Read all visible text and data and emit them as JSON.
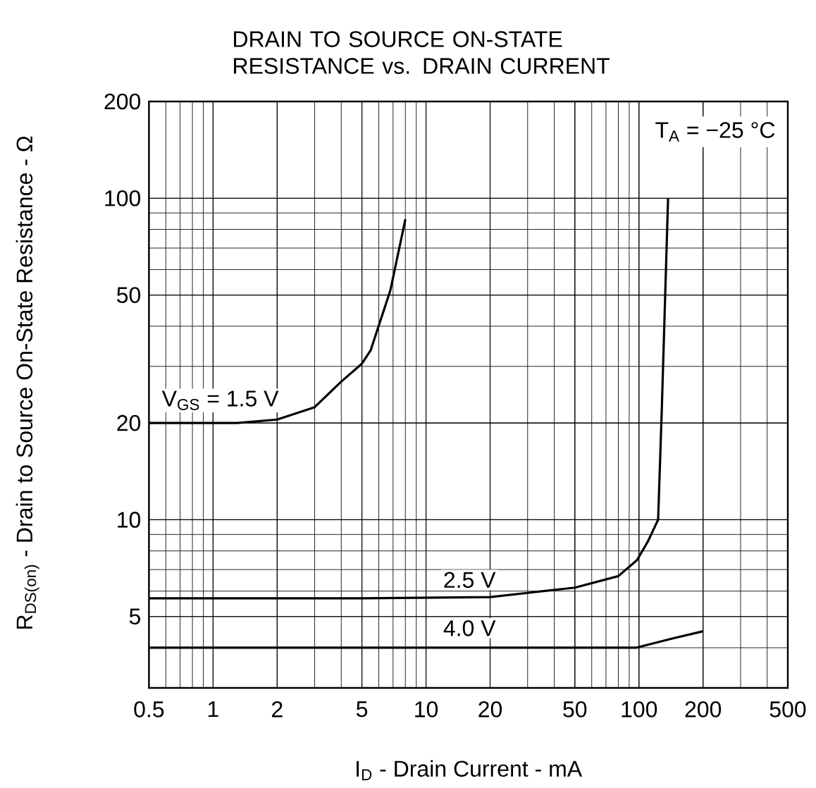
{
  "chart_data": {
    "type": "line",
    "title": "DRAIN TO SOURCE ON-STATE RESISTANCE vs. DRAIN CURRENT",
    "xlabel": "I$_{D}$ - Drain Current - mA",
    "ylabel": "R$_{DS(on)}$ - Drain to Source On-State Resistance - Ω",
    "log": "xy",
    "xlim": [
      0.5,
      500
    ],
    "ylim": [
      3,
      200
    ],
    "xticks": [
      0.5,
      1,
      2,
      5,
      10,
      20,
      50,
      100,
      200,
      500
    ],
    "yticks": [
      5,
      10,
      20,
      50,
      100,
      200
    ],
    "grid": true,
    "marker": "none",
    "line_style": "solid",
    "annotations": [
      "T$_{A}$ = −25 °C"
    ],
    "series": [
      {
        "name": "V$_{GS}$ = 1.5 V",
        "color": "#000000",
        "x": [
          0.5,
          0.8,
          1.3,
          2,
          3,
          4,
          5,
          5.5,
          6.8,
          8
        ],
        "values": [
          20,
          20,
          20,
          20.5,
          22.4,
          26.9,
          30.6,
          33.7,
          51.7,
          86
        ]
      },
      {
        "name": "2.5 V",
        "color": "#000000",
        "x": [
          0.5,
          5,
          20,
          50,
          80,
          98,
          110,
          123,
          128,
          137
        ],
        "values": [
          5.7,
          5.7,
          5.75,
          6.15,
          6.68,
          7.5,
          8.55,
          10,
          22,
          100
        ]
      },
      {
        "name": "4.0 V",
        "color": "#000000",
        "x": [
          0.5,
          10,
          97,
          143,
          200
        ],
        "values": [
          4,
          4,
          4,
          4.27,
          4.5
        ]
      }
    ]
  }
}
